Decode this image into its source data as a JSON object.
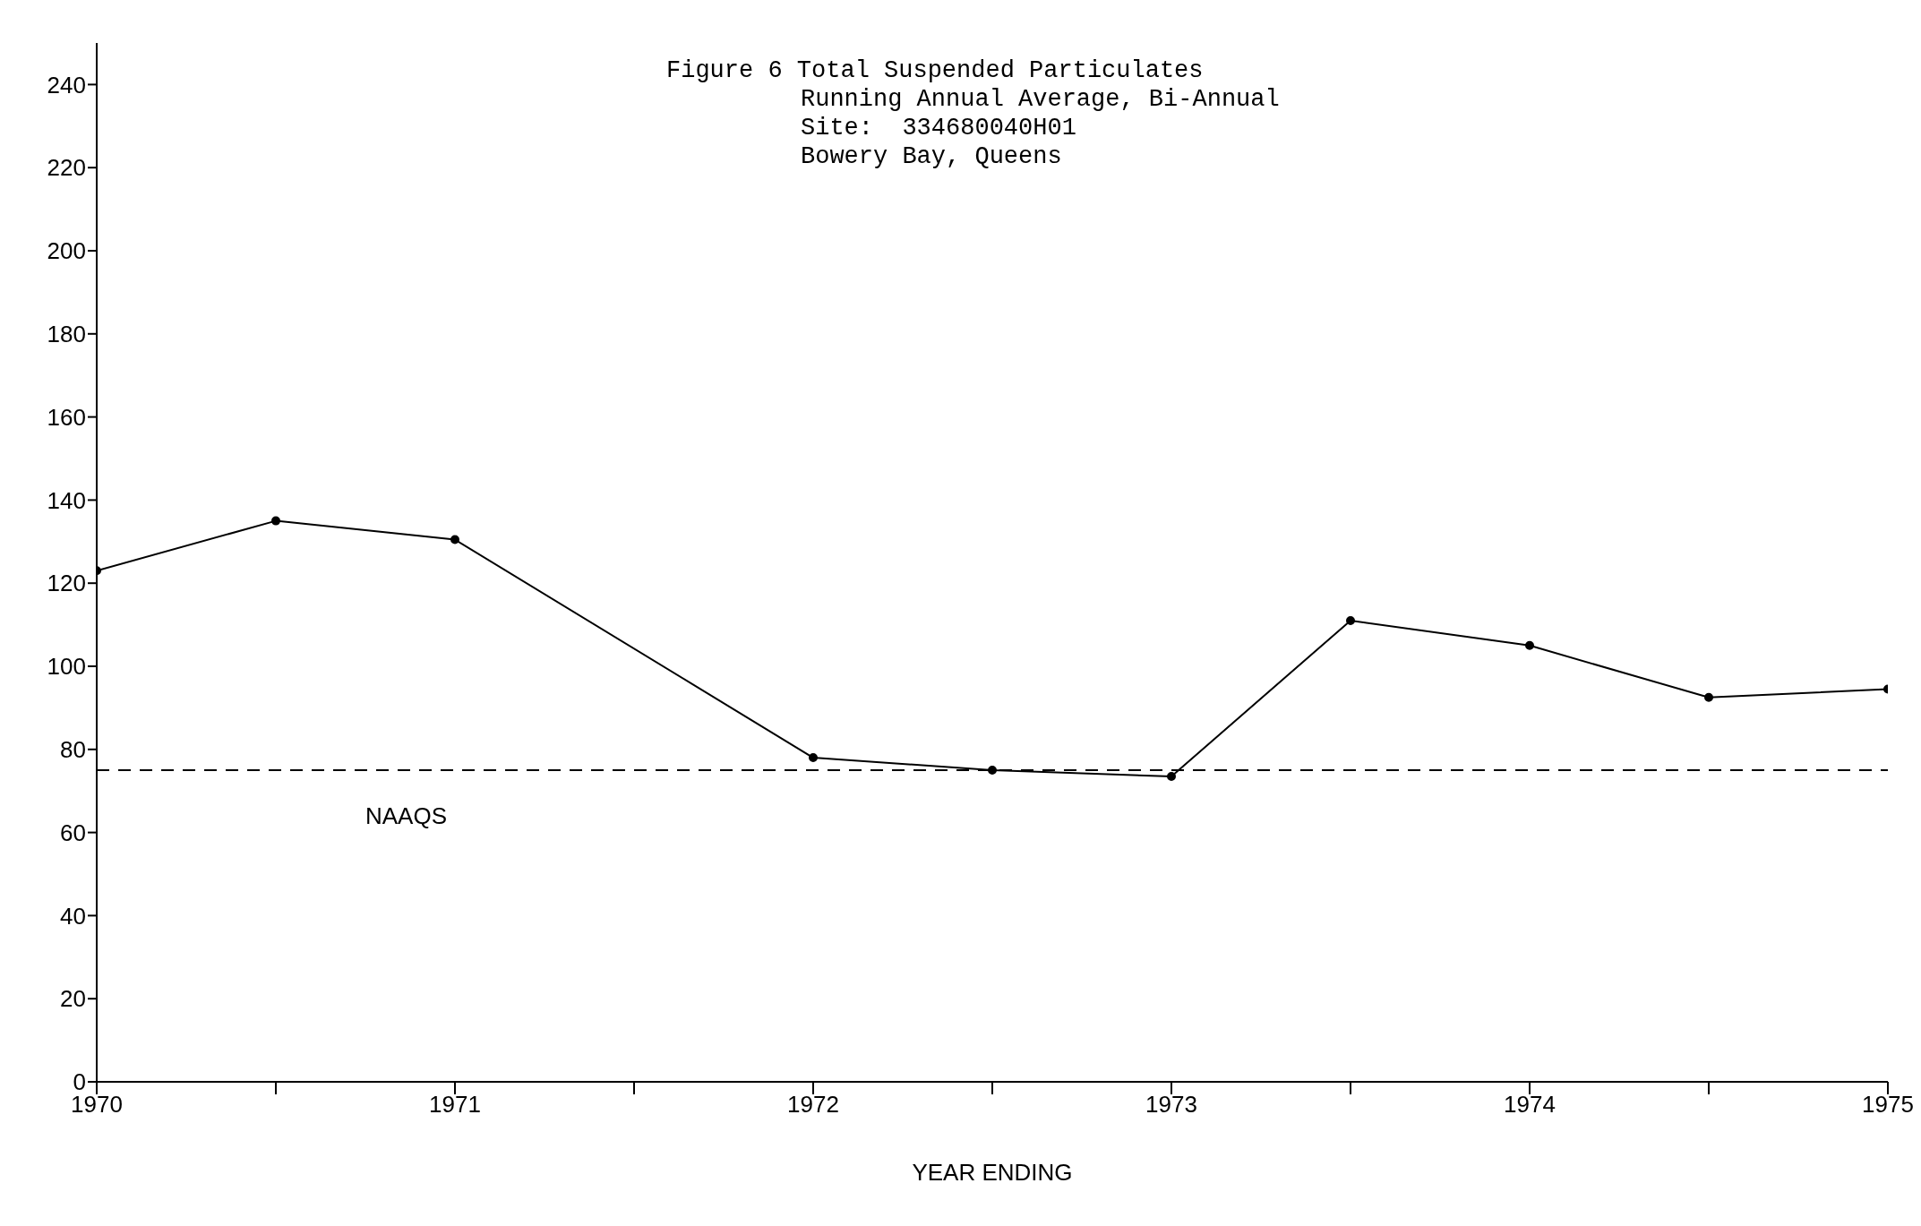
{
  "chart_data": {
    "type": "line",
    "title": "Figure 6 Total Suspended Particulates",
    "subtitle": "Running Annual Average, Bi-Annual\nSite:  334680040H01\nBowery Bay, Queens",
    "xlabel": "YEAR ENDING",
    "x": [
      1970,
      1970.5,
      1971,
      1972,
      1972.5,
      1973,
      1973.5,
      1974,
      1974.5,
      1975
    ],
    "series": [
      {
        "color": "#000000",
        "values": [
          123,
          135,
          130.5,
          78,
          75,
          73.5,
          111,
          105,
          92.5,
          94.5
        ]
      }
    ],
    "xlim": [
      1970,
      1975
    ],
    "xticks": [
      1970,
      {
        "value": 1970.5,
        "label": null
      },
      1971,
      {
        "value": 1971.5,
        "label": null
      },
      1972,
      {
        "value": 1972.5,
        "label": null
      },
      1973,
      {
        "value": 1973.5,
        "label": null
      },
      1974,
      {
        "value": 1974.5,
        "label": null
      },
      1975
    ],
    "ylim": [
      0,
      250
    ],
    "yticks": [
      0,
      20,
      40,
      60,
      80,
      100,
      120,
      140,
      160,
      180,
      200,
      220,
      240
    ],
    "ref_lines": [
      {
        "axis": "y",
        "value": 75,
        "label": "NAAQS",
        "color": "#000000",
        "line_style": "dashed"
      }
    ],
    "grid": false,
    "legend": false,
    "marker": "circle",
    "line_style": "solid"
  }
}
